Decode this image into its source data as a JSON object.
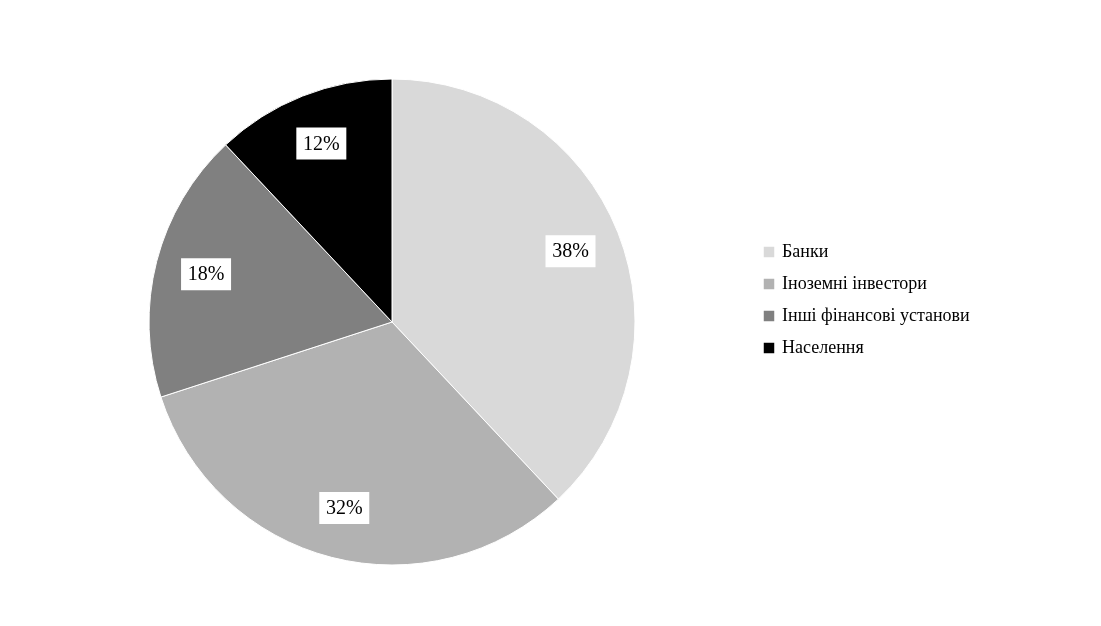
{
  "chart_data": {
    "type": "pie",
    "categories": [
      "Банки",
      "Іноземні інвестори",
      "Інші фінансові установи",
      "Населення"
    ],
    "values": [
      38,
      32,
      18,
      12
    ],
    "colors": [
      "#d9d9d9",
      "#b2b2b2",
      "#808080",
      "#000000"
    ],
    "value_labels": [
      "38%",
      "32%",
      "18%",
      "12%"
    ],
    "legend": "right"
  }
}
